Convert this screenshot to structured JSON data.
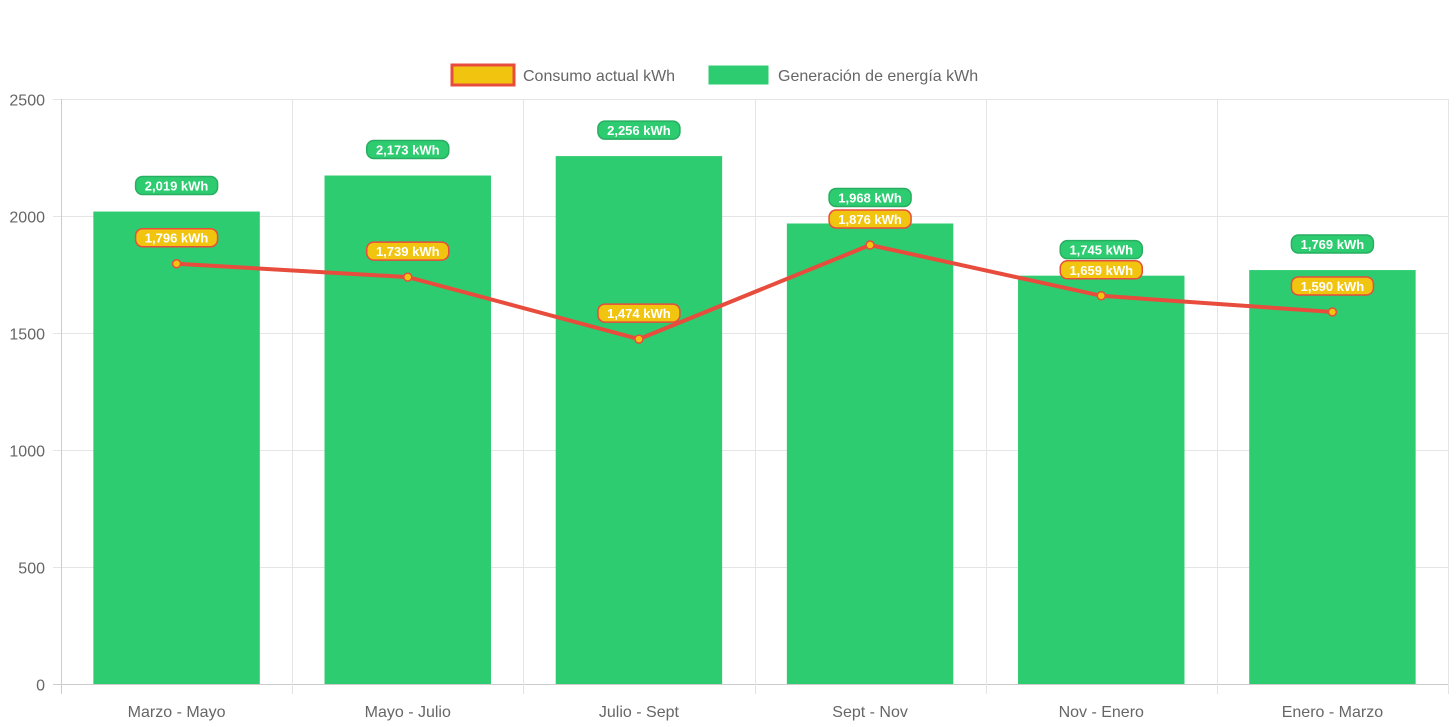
{
  "chart_data": {
    "type": "bar",
    "title": "",
    "xlabel": "",
    "ylabel": "",
    "ylim": [
      0,
      2500
    ],
    "yticks": [
      0,
      500,
      1000,
      1500,
      2000,
      2500
    ],
    "grid": true,
    "legend_position": "top-center",
    "categories": [
      "Marzo - Mayo",
      "Mayo - Julio",
      "Julio - Sept",
      "Sept - Nov",
      "Nov - Enero",
      "Enero - Marzo"
    ],
    "series": [
      {
        "name": "Consumo actual kWh",
        "type": "line",
        "values": [
          1796,
          1739,
          1474,
          1876,
          1659,
          1590
        ],
        "labels": [
          "1,796 kWh",
          "1,739 kWh",
          "1,474 kWh",
          "1,876 kWh",
          "1,659 kWh",
          "1,590 kWh"
        ],
        "color": "#e74c3c",
        "fill": "#f1c40f"
      },
      {
        "name": "Generación de energía kWh",
        "type": "bar",
        "values": [
          2019,
          2173,
          2256,
          1968,
          1745,
          1769
        ],
        "labels": [
          "2,019 kWh",
          "2,173 kWh",
          "2,256 kWh",
          "1,968 kWh",
          "1,745 kWh",
          "1,769 kWh"
        ],
        "color": "#2ecc71",
        "border": "#27ae60"
      }
    ]
  }
}
